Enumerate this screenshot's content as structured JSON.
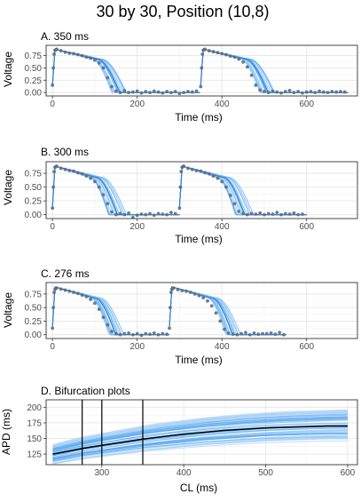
{
  "title": "30 by 30, Position (10,8)",
  "colors": {
    "band": "#5aa8f0",
    "band_light": "#a9d2f7",
    "mean_line": "#000000",
    "points": "#5b6e80",
    "grid": "#e6e6e6",
    "axis_text": "#4d4d4d"
  },
  "chart_data": [
    {
      "type": "line",
      "title": "A. 350 ms",
      "xlabel": "Time (ms)",
      "ylabel": "Voltage",
      "xlim": [
        -15,
        720
      ],
      "ylim": [
        -0.07,
        0.96
      ],
      "xticks": [
        0,
        200,
        400,
        600
      ],
      "yticks": [
        0.0,
        0.25,
        0.5,
        0.75
      ],
      "ytick_labels": [
        "0.00",
        "0.25",
        "0.50",
        "0.75"
      ],
      "cycle_length": 350,
      "beats": 2,
      "apd_range": [
        125,
        160
      ],
      "mean_apd": 145,
      "observed": {
        "x": [
          0,
          2,
          4,
          6,
          8,
          10,
          20,
          30,
          40,
          50,
          60,
          70,
          80,
          90,
          100,
          110,
          120,
          130,
          140,
          150,
          160,
          170,
          180,
          190,
          200,
          210,
          220,
          230,
          240,
          250,
          260,
          270,
          280,
          290,
          300,
          310,
          320,
          330,
          340,
          350,
          352,
          354,
          356,
          358,
          360,
          370,
          380,
          390,
          400,
          410,
          420,
          430,
          440,
          450,
          460,
          470,
          480,
          490,
          500,
          510,
          520,
          530,
          540,
          550,
          560,
          570,
          580,
          590,
          600,
          610,
          620,
          630,
          640,
          650,
          660,
          670,
          680,
          690
        ],
        "y": [
          0.15,
          0.5,
          0.78,
          0.86,
          0.87,
          0.88,
          0.85,
          0.82,
          0.8,
          0.79,
          0.77,
          0.75,
          0.72,
          0.7,
          0.66,
          0.6,
          0.5,
          0.3,
          0.12,
          0.03,
          0.0,
          0.04,
          0.0,
          0.01,
          0.03,
          -0.01,
          0.02,
          0.0,
          0.03,
          0.01,
          -0.01,
          0.02,
          0.0,
          0.02,
          -0.02,
          0.0,
          0.02,
          0.01,
          0.03,
          0.12,
          0.5,
          0.78,
          0.86,
          0.87,
          0.88,
          0.85,
          0.83,
          0.81,
          0.79,
          0.77,
          0.74,
          0.72,
          0.68,
          0.62,
          0.52,
          0.35,
          0.15,
          0.05,
          0.02,
          0.0,
          0.03,
          0.01,
          -0.01,
          0.02,
          0.04,
          0.0,
          0.02,
          -0.01,
          0.01,
          0.02,
          0.0,
          0.03,
          0.01,
          0.0,
          0.02,
          0.01,
          0.02,
          0.01
        ]
      }
    },
    {
      "type": "line",
      "title": "B. 300 ms",
      "xlabel": "Time (ms)",
      "ylabel": "Voltage",
      "xlim": [
        -15,
        720
      ],
      "ylim": [
        -0.07,
        0.96
      ],
      "xticks": [
        0,
        200,
        400,
        600
      ],
      "yticks": [
        0.0,
        0.25,
        0.5,
        0.75
      ],
      "ytick_labels": [
        "0.00",
        "0.25",
        "0.50",
        "0.75"
      ],
      "cycle_length": 300,
      "beats": 2,
      "apd_range": [
        120,
        160
      ],
      "mean_apd": 140,
      "observed": {
        "x": [
          0,
          2,
          4,
          6,
          8,
          10,
          20,
          30,
          40,
          50,
          60,
          70,
          80,
          90,
          100,
          110,
          120,
          130,
          140,
          150,
          160,
          170,
          180,
          190,
          200,
          210,
          220,
          230,
          240,
          250,
          260,
          270,
          280,
          290,
          300,
          302,
          304,
          306,
          308,
          310,
          320,
          330,
          340,
          350,
          360,
          370,
          380,
          390,
          400,
          410,
          420,
          430,
          440,
          450,
          460,
          470,
          480,
          490,
          500,
          510,
          520,
          530,
          540,
          550,
          560,
          570,
          580,
          590
        ],
        "y": [
          0.12,
          0.5,
          0.78,
          0.86,
          0.87,
          0.88,
          0.84,
          0.82,
          0.8,
          0.79,
          0.76,
          0.74,
          0.7,
          0.66,
          0.6,
          0.5,
          0.36,
          0.2,
          0.05,
          0.0,
          0.02,
          0.0,
          0.03,
          -0.05,
          -0.01,
          0.01,
          0.0,
          0.02,
          -0.01,
          0.02,
          0.01,
          0.0,
          0.04,
          0.02,
          0.12,
          0.5,
          0.78,
          0.86,
          0.87,
          0.88,
          0.84,
          0.82,
          0.8,
          0.79,
          0.76,
          0.74,
          0.7,
          0.66,
          0.6,
          0.5,
          0.35,
          0.2,
          0.06,
          0.02,
          0.0,
          0.02,
          0.01,
          0.03,
          0.0,
          0.02,
          0.01,
          0.04,
          0.0,
          0.02,
          0.01,
          0.03,
          0.0,
          0.01
        ]
      }
    },
    {
      "type": "line",
      "title": "C. 276 ms",
      "xlabel": "Time (ms)",
      "ylabel": "Voltage",
      "xlim": [
        -15,
        720
      ],
      "ylim": [
        -0.07,
        0.96
      ],
      "xticks": [
        0,
        200,
        400,
        600
      ],
      "yticks": [
        0.0,
        0.25,
        0.5,
        0.75
      ],
      "ytick_labels": [
        "0.00",
        "0.25",
        "0.50",
        "0.75"
      ],
      "cycle_length": 276,
      "beats": 2,
      "apd_range": [
        120,
        155
      ],
      "mean_apd": 136,
      "observed": {
        "x": [
          0,
          2,
          4,
          6,
          8,
          10,
          20,
          30,
          40,
          50,
          60,
          70,
          80,
          90,
          100,
          110,
          120,
          130,
          140,
          150,
          160,
          170,
          180,
          190,
          200,
          210,
          220,
          230,
          240,
          250,
          260,
          270,
          276,
          278,
          280,
          282,
          284,
          286,
          296,
          306,
          316,
          326,
          336,
          346,
          356,
          366,
          376,
          386,
          396,
          406,
          416,
          426,
          436,
          446,
          456,
          466,
          476,
          486,
          496,
          506,
          516,
          526,
          536,
          546
        ],
        "y": [
          0.12,
          0.5,
          0.78,
          0.84,
          0.85,
          0.86,
          0.84,
          0.82,
          0.8,
          0.78,
          0.76,
          0.73,
          0.7,
          0.65,
          0.58,
          0.47,
          0.32,
          0.18,
          0.06,
          0.02,
          0.0,
          0.02,
          0.03,
          0.0,
          0.02,
          -0.01,
          0.02,
          0.01,
          0.03,
          0.0,
          0.02,
          0.01,
          0.12,
          0.5,
          0.78,
          0.84,
          0.85,
          0.86,
          0.83,
          0.81,
          0.8,
          0.78,
          0.75,
          0.72,
          0.68,
          0.62,
          0.53,
          0.4,
          0.25,
          0.1,
          0.03,
          0.01,
          0.0,
          0.02,
          0.04,
          0.0,
          0.03,
          0.01,
          0.02,
          0.02,
          0.03,
          0.01,
          0.04,
          0.0
        ]
      }
    },
    {
      "type": "line",
      "title": "D. Bifurcation plots",
      "xlabel": "CL (ms)",
      "ylabel": "APD (ms)",
      "xlim": [
        232,
        612
      ],
      "ylim": [
        108,
        212
      ],
      "xticks": [
        300,
        400,
        500,
        600
      ],
      "yticks": [
        125,
        150,
        175,
        200
      ],
      "ytick_labels": [
        "125",
        "150",
        "175",
        "200"
      ],
      "vlines": [
        276,
        300,
        350
      ],
      "mean_curve": {
        "x": [
          240,
          260,
          276,
          300,
          325,
          350,
          375,
          400,
          425,
          450,
          475,
          500,
          525,
          550,
          575,
          600
        ],
        "y": [
          125,
          130,
          134,
          139,
          144,
          149,
          153,
          157,
          160,
          163,
          165,
          167,
          168,
          169,
          170,
          170
        ]
      },
      "band_low": [
        108,
        112,
        116,
        120,
        124,
        128,
        131,
        134,
        137,
        139,
        141,
        143,
        144,
        145,
        146,
        146
      ],
      "band_high": [
        140,
        147,
        152,
        158,
        164,
        170,
        175,
        179,
        183,
        186,
        189,
        191,
        193,
        194,
        195,
        196
      ]
    }
  ]
}
